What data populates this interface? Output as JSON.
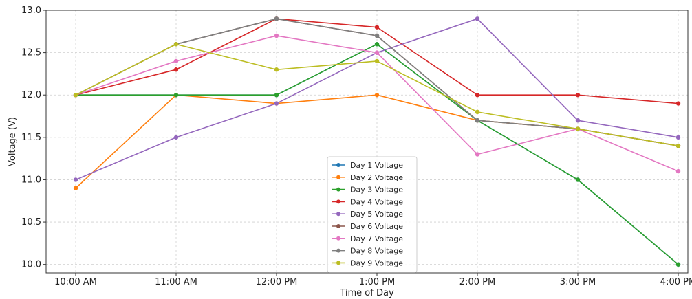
{
  "chart_data": {
    "type": "line",
    "title": "",
    "xlabel": "Time of Day",
    "ylabel": "Voltage (V)",
    "categories": [
      "10:00 AM",
      "11:00 AM",
      "12:00 PM",
      "1:00 PM",
      "2:00 PM",
      "3:00 PM",
      "4:00 PM"
    ],
    "ylim": [
      9.9,
      13.0
    ],
    "yticks": [
      10.0,
      10.5,
      11.0,
      11.5,
      12.0,
      12.5,
      13.0
    ],
    "grid": true,
    "legend_position": "bottom-center",
    "series": [
      {
        "name": "Day 1 Voltage",
        "color": "#1f77b4",
        "values": [
          12.0,
          12.0,
          12.0,
          12.6,
          11.7,
          11.0,
          10.0
        ]
      },
      {
        "name": "Day 2 Voltage",
        "color": "#ff7f0e",
        "values": [
          10.9,
          12.0,
          11.9,
          12.0,
          11.7,
          11.6,
          11.4
        ]
      },
      {
        "name": "Day 3 Voltage",
        "color": "#2ca02c",
        "values": [
          12.0,
          12.0,
          12.0,
          12.6,
          11.7,
          11.0,
          10.0
        ]
      },
      {
        "name": "Day 4 Voltage",
        "color": "#d62728",
        "values": [
          12.0,
          12.3,
          12.9,
          12.8,
          12.0,
          12.0,
          11.9
        ]
      },
      {
        "name": "Day 5 Voltage",
        "color": "#9467bd",
        "values": [
          11.0,
          11.5,
          11.9,
          12.5,
          12.9,
          11.7,
          11.5
        ]
      },
      {
        "name": "Day 6 Voltage",
        "color": "#8c564b",
        "values": [
          12.0,
          12.6,
          12.9,
          12.7,
          11.7,
          11.6,
          11.4
        ]
      },
      {
        "name": "Day 7 Voltage",
        "color": "#e377c2",
        "values": [
          12.0,
          12.4,
          12.7,
          12.5,
          11.3,
          11.6,
          11.1
        ]
      },
      {
        "name": "Day 8 Voltage",
        "color": "#7f7f7f",
        "values": [
          12.0,
          12.6,
          12.9,
          12.7,
          11.7,
          11.6,
          11.4
        ]
      },
      {
        "name": "Day 9 Voltage",
        "color": "#bcbd22",
        "values": [
          12.0,
          12.6,
          12.3,
          12.4,
          11.8,
          11.6,
          11.4
        ]
      }
    ]
  }
}
